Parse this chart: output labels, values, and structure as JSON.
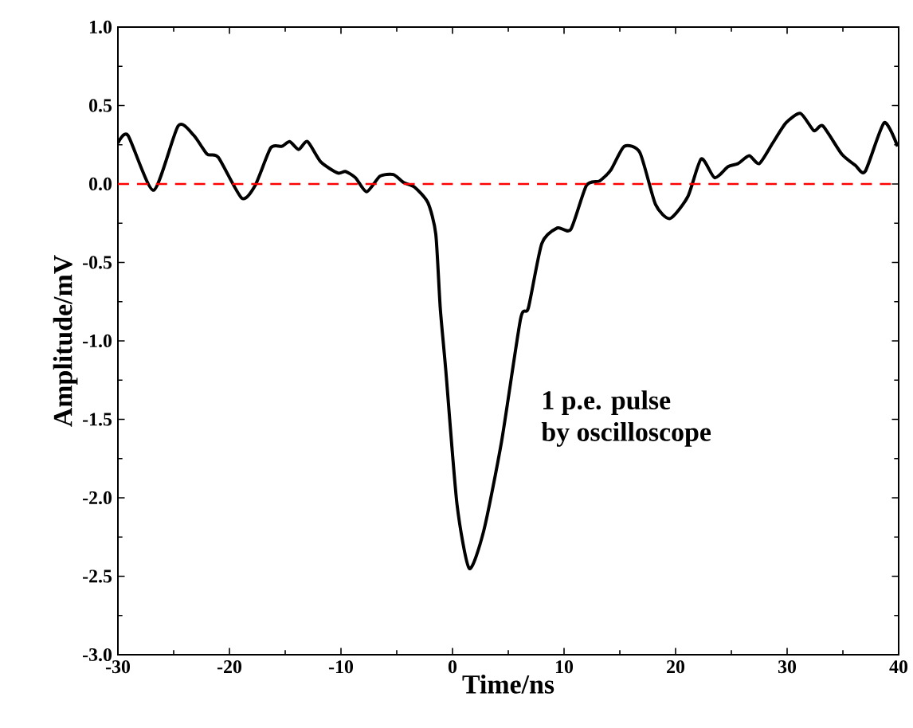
{
  "chart_data": {
    "type": "line",
    "xlabel": "Time/ns",
    "ylabel": "Amplitude/mV",
    "annotations": [
      "1 p.e. pulse",
      "by oscilloscope"
    ],
    "x": [
      -30,
      -29.1,
      -26.8,
      -24.6,
      -23.2,
      -22,
      -21,
      -18.9,
      -17.7,
      -16.3,
      -15.3,
      -14.6,
      -13.8,
      -13,
      -11.8,
      -10.3,
      -9.6,
      -8.7,
      -7.7,
      -6.5,
      -5.3,
      -4.4,
      -3.4,
      -2.2,
      -1.5,
      -1.1,
      -0.6,
      0.4,
      1.5,
      2.8,
      4.4,
      6.1,
      6.8,
      8,
      9.4,
      10.6,
      12,
      13.2,
      14.2,
      15.4,
      16.8,
      18.2,
      19.5,
      21.1,
      22.3,
      23.5,
      24.7,
      25.6,
      26.6,
      27.5,
      28.7,
      29.9,
      31.2,
      32.4,
      33.2,
      34.9,
      36.1,
      37,
      38.7,
      39.9
    ],
    "series": [
      {
        "color": "#000000",
        "values": [
          0.26,
          0.31,
          -0.04,
          0.37,
          0.31,
          0.19,
          0.17,
          -0.09,
          -0.01,
          0.23,
          0.24,
          0.27,
          0.22,
          0.27,
          0.14,
          0.07,
          0.08,
          0.04,
          -0.05,
          0.05,
          0.06,
          0.01,
          -0.02,
          -0.12,
          -0.32,
          -0.79,
          -1.19,
          -2.04,
          -2.45,
          -2.21,
          -1.64,
          -0.86,
          -0.79,
          -0.38,
          -0.28,
          -0.29,
          -0.01,
          0.02,
          0.09,
          0.24,
          0.2,
          -0.13,
          -0.22,
          -0.08,
          0.16,
          0.04,
          0.11,
          0.13,
          0.18,
          0.13,
          0.26,
          0.39,
          0.45,
          0.34,
          0.37,
          0.19,
          0.12,
          0.08,
          0.39,
          0.24
        ]
      }
    ],
    "xlim": [
      -30,
      40
    ],
    "xticks": [
      -30,
      -20,
      -10,
      0,
      10,
      20,
      30,
      40
    ],
    "ylim": [
      -3.0,
      1.0
    ],
    "yticks": [
      {
        "value": -3,
        "label": "-3.0"
      },
      {
        "value": -2.5,
        "label": "-2.5"
      },
      {
        "value": -2,
        "label": "-2.0"
      },
      {
        "value": -1.5,
        "label": "-1.5"
      },
      {
        "value": -1,
        "label": "-1.0"
      },
      {
        "value": -0.5,
        "label": "-0.5"
      },
      {
        "value": 0,
        "label": "0.0"
      },
      {
        "value": 0.5,
        "label": "0.5"
      },
      {
        "value": 1,
        "label": "1.0"
      }
    ],
    "ref_lines": [
      {
        "axis": "y",
        "value": 0,
        "color": "#ff0000",
        "line_style": "dashed"
      }
    ],
    "grid": false,
    "marker": "none",
    "line_style": "solid"
  }
}
